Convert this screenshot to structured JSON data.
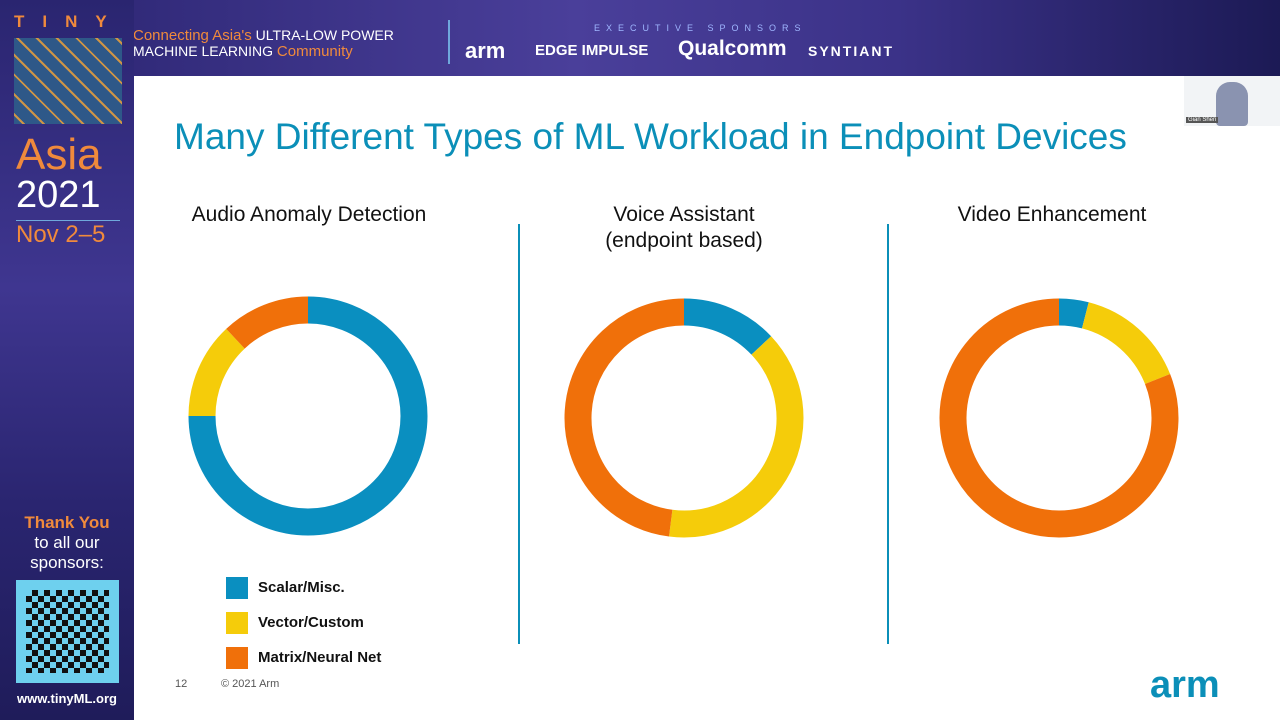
{
  "banner": {
    "logo_top": "TINY",
    "logo_mid": "ML",
    "region": "Asia",
    "year": "2021",
    "dates": "Nov 2–5",
    "tagline_1_accent": "Connecting Asia's",
    "tagline_1_rest": " ULTRA-LOW POWER",
    "tagline_2_rest": "MACHINE LEARNING ",
    "tagline_2_accent": "Community",
    "sponsors_heading": "EXECUTIVE SPONSORS",
    "sponsors": [
      "arm",
      "EDGE IMPULSE",
      "Qualcomm",
      "SYNTIANT"
    ]
  },
  "sidebar": {
    "thanks": "Thank You",
    "thanks_rest": "to all our sponsors:",
    "url": "www.tinyML.org"
  },
  "webcam": {
    "name": "Gian Shen"
  },
  "slide": {
    "title": "Many Different Types of ML Workload in Endpoint Devices",
    "page_number": "12",
    "copyright": "© 2021 Arm",
    "logo": "arm"
  },
  "colors": {
    "scalar": "#0a8fc0",
    "vector": "#f5cc0a",
    "matrix": "#f0700a",
    "accent": "#0b8fb8"
  },
  "chart_data": [
    {
      "type": "pie",
      "title": "Audio Anomaly Detection",
      "categories": [
        "Scalar/Misc.",
        "Vector/Custom",
        "Matrix/Neural Net"
      ],
      "values": [
        75,
        13,
        12
      ],
      "legend": "bottom"
    },
    {
      "type": "pie",
      "title": "Voice Assistant (endpoint based)",
      "title_line1": "Voice Assistant",
      "title_line2": "(endpoint based)",
      "categories": [
        "Scalar/Misc.",
        "Vector/Custom",
        "Matrix/Neural Net"
      ],
      "values": [
        13,
        39,
        48
      ]
    },
    {
      "type": "pie",
      "title": "Video Enhancement",
      "categories": [
        "Scalar/Misc.",
        "Vector/Custom",
        "Matrix/Neural Net"
      ],
      "values": [
        4,
        15,
        81
      ]
    }
  ]
}
